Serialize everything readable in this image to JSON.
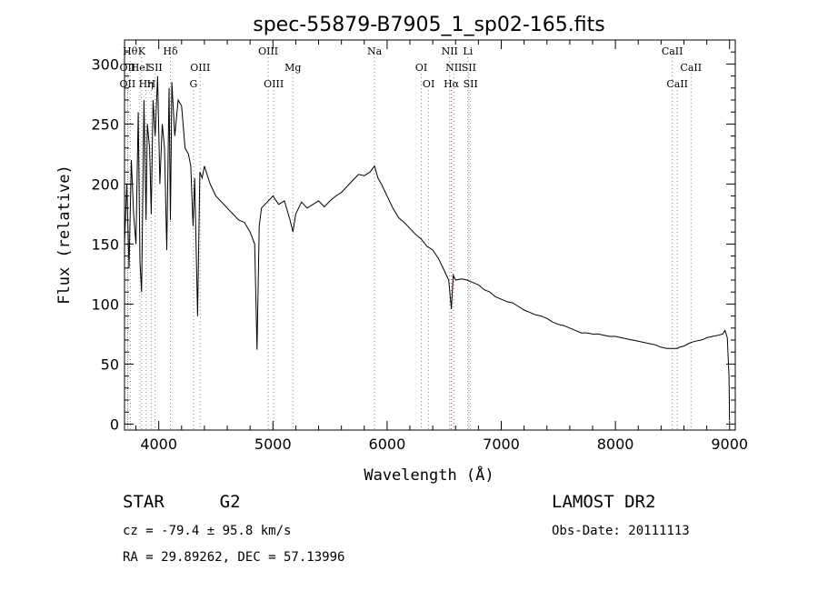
{
  "chart_data": {
    "type": "line",
    "title": "spec-55879-B7905_1_sp02-165.fits",
    "xlabel": "Wavelength (Å)",
    "ylabel": "Flux (relative)",
    "xlim": [
      3700,
      9050
    ],
    "ylim": [
      -5,
      320
    ],
    "xticks": [
      4000,
      5000,
      6000,
      7000,
      8000,
      9000
    ],
    "yticks": [
      0,
      50,
      100,
      150,
      200,
      250,
      300
    ],
    "grid": false,
    "series": [
      {
        "x": [
          3700,
          3720,
          3740,
          3760,
          3780,
          3800,
          3820,
          3835,
          3850,
          3870,
          3889,
          3900,
          3920,
          3934,
          3950,
          3968,
          3990,
          4010,
          4030,
          4050,
          4070,
          4090,
          4102,
          4115,
          4140,
          4170,
          4200,
          4230,
          4260,
          4280,
          4300,
          4315,
          4340,
          4360,
          4380,
          4400,
          4450,
          4500,
          4550,
          4600,
          4650,
          4700,
          4750,
          4800,
          4840,
          4861,
          4880,
          4900,
          4950,
          5000,
          5050,
          5100,
          5150,
          5175,
          5200,
          5250,
          5300,
          5350,
          5400,
          5450,
          5500,
          5550,
          5600,
          5650,
          5700,
          5750,
          5800,
          5850,
          5890,
          5920,
          5950,
          6000,
          6050,
          6100,
          6150,
          6200,
          6250,
          6300,
          6350,
          6400,
          6450,
          6500,
          6540,
          6563,
          6580,
          6600,
          6650,
          6700,
          6750,
          6800,
          6850,
          6900,
          6950,
          7000,
          7050,
          7100,
          7150,
          7200,
          7250,
          7300,
          7350,
          7400,
          7450,
          7500,
          7550,
          7600,
          7650,
          7700,
          7750,
          7800,
          7850,
          7900,
          7950,
          8000,
          8050,
          8100,
          8150,
          8200,
          8250,
          8300,
          8350,
          8400,
          8450,
          8498,
          8520,
          8542,
          8560,
          8600,
          8640,
          8662,
          8700,
          8750,
          8780,
          8800,
          8850,
          8900,
          8940,
          8960,
          8980,
          8995,
          9000
        ],
        "y": [
          150,
          200,
          130,
          220,
          175,
          150,
          260,
          135,
          110,
          270,
          170,
          250,
          230,
          175,
          270,
          240,
          290,
          200,
          250,
          230,
          145,
          280,
          170,
          285,
          240,
          270,
          265,
          230,
          225,
          215,
          165,
          205,
          90,
          210,
          205,
          215,
          200,
          190,
          185,
          180,
          175,
          170,
          168,
          160,
          150,
          62,
          165,
          180,
          185,
          190,
          183,
          186,
          170,
          160,
          175,
          185,
          180,
          183,
          186,
          181,
          186,
          190,
          193,
          198,
          203,
          208,
          207,
          210,
          215,
          205,
          200,
          190,
          180,
          172,
          168,
          163,
          158,
          154,
          148,
          145,
          138,
          128,
          120,
          96,
          124,
          120,
          121,
          120,
          118,
          116,
          112,
          110,
          106,
          104,
          102,
          101,
          98,
          95,
          93,
          91,
          90,
          88,
          85,
          83,
          82,
          80,
          78,
          76,
          76,
          75,
          75,
          74,
          73,
          73,
          72,
          71,
          70,
          69,
          68,
          67,
          66,
          64,
          63,
          63,
          63,
          63,
          64,
          65,
          67,
          68,
          69,
          70,
          71,
          72,
          73,
          74,
          75,
          78,
          72,
          40,
          3
        ]
      }
    ],
    "line_markers": [
      {
        "row": 1,
        "wl": 3750,
        "label": "Hθ"
      },
      {
        "row": 1,
        "wl": 3850,
        "label": "K"
      },
      {
        "row": 1,
        "wl": 4102,
        "label": "Hδ"
      },
      {
        "row": 1,
        "wl": 4959,
        "label": "OIII"
      },
      {
        "row": 1,
        "wl": 5890,
        "label": "Na"
      },
      {
        "row": 1,
        "wl": 6548,
        "label": "NII"
      },
      {
        "row": 1,
        "wl": 6708,
        "label": "Li"
      },
      {
        "row": 1,
        "wl": 8498,
        "label": "CaII"
      },
      {
        "row": 2,
        "wl": 3727,
        "label": "OII"
      },
      {
        "row": 2,
        "wl": 3835,
        "label": "HeI"
      },
      {
        "row": 2,
        "wl": 3968,
        "label": "SII"
      },
      {
        "row": 2,
        "wl": 4363,
        "label": "OIII"
      },
      {
        "row": 2,
        "wl": 5175,
        "label": "Mg"
      },
      {
        "row": 2,
        "wl": 6300,
        "label": "OI"
      },
      {
        "row": 2,
        "wl": 6584,
        "label": "NII"
      },
      {
        "row": 2,
        "wl": 6716,
        "label": "SII"
      },
      {
        "row": 2,
        "wl": 8662,
        "label": "CaII"
      },
      {
        "row": 3,
        "wl": 3727,
        "label": "OII"
      },
      {
        "row": 3,
        "wl": 3889,
        "label": "Hη"
      },
      {
        "row": 3,
        "wl": 3934,
        "label": "H"
      },
      {
        "row": 3,
        "wl": 4304,
        "label": "G"
      },
      {
        "row": 3,
        "wl": 5007,
        "label": "OIII"
      },
      {
        "row": 3,
        "wl": 6364,
        "label": "OI"
      },
      {
        "row": 3,
        "wl": 6563,
        "label": "Hα"
      },
      {
        "row": 3,
        "wl": 6731,
        "label": "SII"
      },
      {
        "row": 3,
        "wl": 8542,
        "label": "CaII"
      }
    ],
    "marker_colors": {
      "default": "#888888",
      "halpha": "#d23c3c"
    }
  },
  "info": {
    "class_label": "STAR",
    "subclass": "G2",
    "survey": "LAMOST DR2",
    "cz": "cz = -79.4 ± 95.8 km/s",
    "obs_date": "Obs-Date: 20111113",
    "coords": "RA =  29.89262, DEC =  57.13996"
  }
}
